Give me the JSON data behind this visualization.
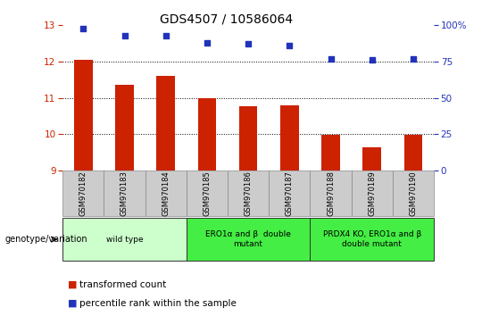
{
  "title": "GDS4507 / 10586064",
  "samples": [
    "GSM970182",
    "GSM970183",
    "GSM970184",
    "GSM970185",
    "GSM970186",
    "GSM970187",
    "GSM970188",
    "GSM970189",
    "GSM970190"
  ],
  "transformed_counts": [
    12.05,
    11.35,
    11.6,
    11.0,
    10.78,
    10.8,
    9.98,
    9.65,
    9.98
  ],
  "percentile_ranks": [
    98,
    93,
    93,
    88,
    87,
    86,
    77,
    76,
    77
  ],
  "ylim_left": [
    9,
    13
  ],
  "ylim_right": [
    0,
    100
  ],
  "yticks_left": [
    9,
    10,
    11,
    12,
    13
  ],
  "yticks_right": [
    0,
    25,
    50,
    75,
    100
  ],
  "ytick_labels_right": [
    "0",
    "25",
    "50",
    "75",
    "100%"
  ],
  "bar_color": "#cc2200",
  "dot_color": "#2233bb",
  "grid_color": "#000000",
  "bg_color": "#ffffff",
  "tick_label_color_left": "#cc2200",
  "tick_label_color_right": "#2233bb",
  "genotype_groups": [
    {
      "label": "wild type",
      "start": 0,
      "end": 2,
      "color": "#ccffcc"
    },
    {
      "label": "ERO1α and β  double\nmutant",
      "start": 3,
      "end": 5,
      "color": "#44ee44"
    },
    {
      "label": "PRDX4 KO, ERO1α and β\ndouble mutant",
      "start": 6,
      "end": 8,
      "color": "#44ee44"
    }
  ],
  "legend_bar_label": "transformed count",
  "legend_dot_label": "percentile rank within the sample",
  "genotype_label": "genotype/variation",
  "bar_width": 0.45,
  "dot_size": 20
}
